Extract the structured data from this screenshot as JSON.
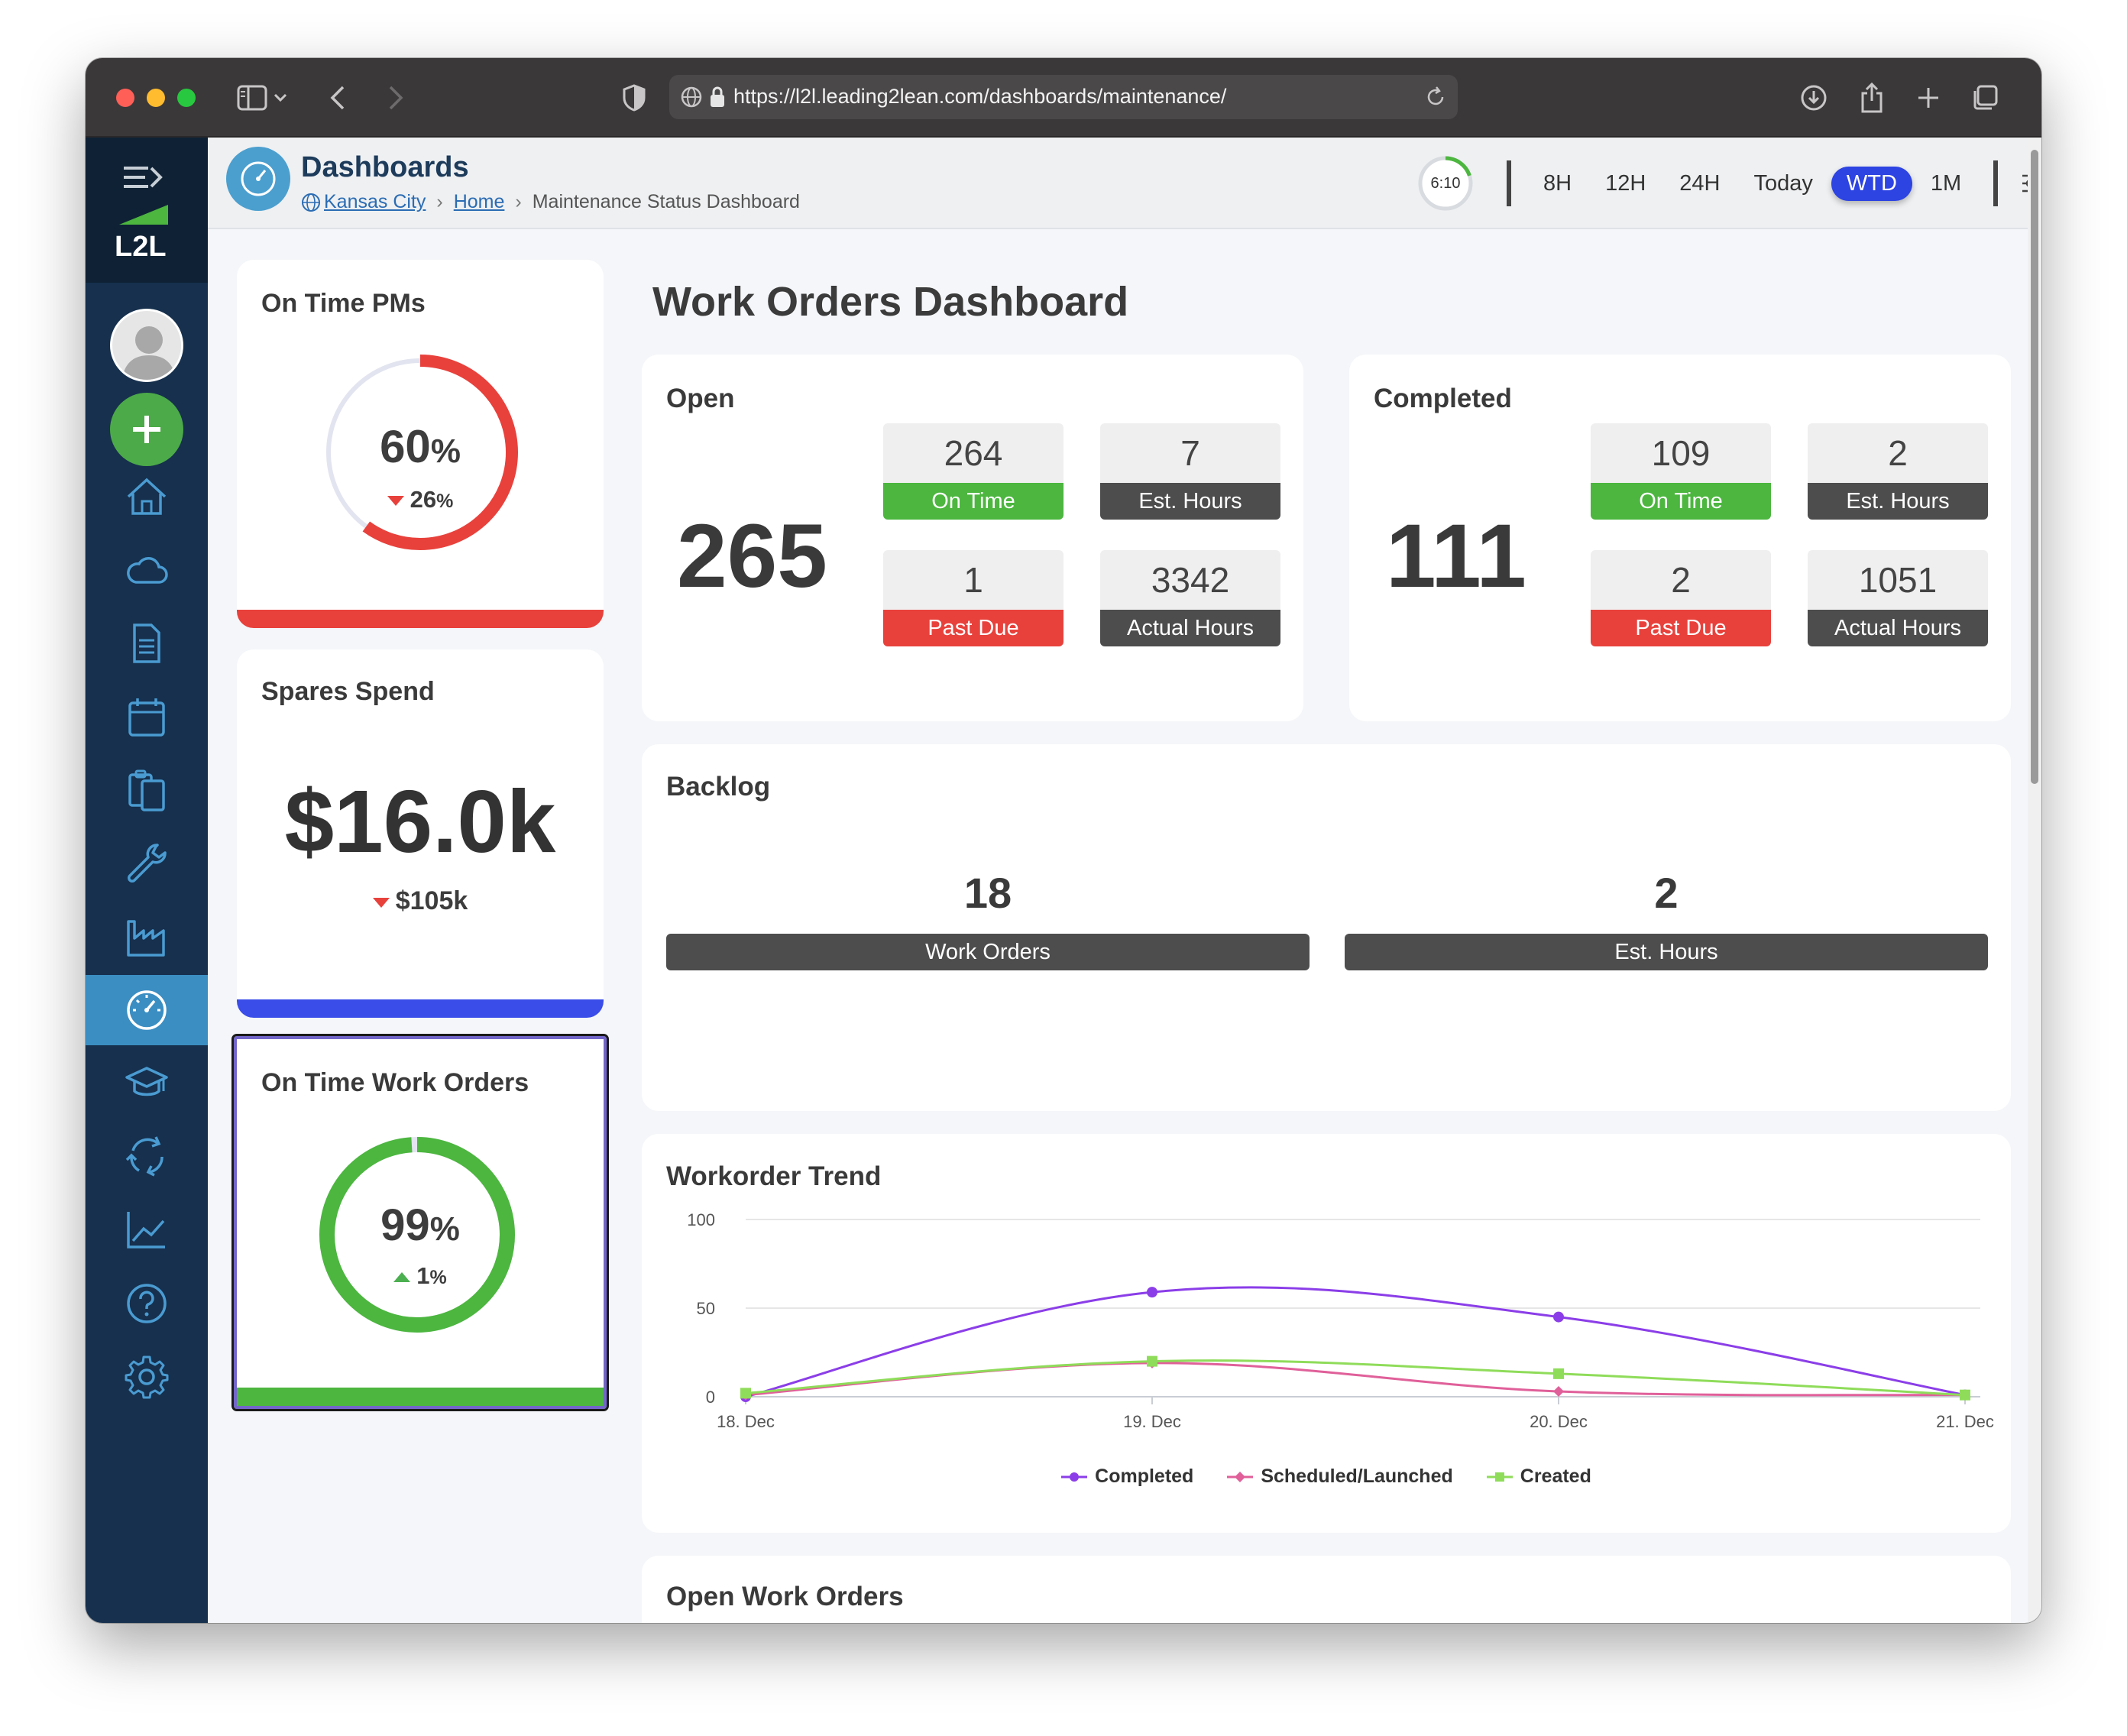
{
  "browser": {
    "url": "https://l2l.leading2lean.com/dashboards/maintenance/"
  },
  "nav": {
    "logo_text": "L2L",
    "items": [
      "home-icon",
      "cloud-icon",
      "document-icon",
      "calendar-icon",
      "clipboard-icon",
      "wrench-icon",
      "factory-icon",
      "dashboard-icon",
      "graduation-cap-icon",
      "cycle-icon",
      "trend-icon",
      "help-icon",
      "gear-icon"
    ],
    "active_item": "dashboard-icon"
  },
  "header": {
    "title": "Dashboards",
    "breadcrumb": {
      "site": "Kansas City",
      "home": "Home",
      "current": "Maintenance Status Dashboard"
    },
    "timer": "6:10",
    "timer_progress": 0.2,
    "ranges": [
      "8H",
      "12H",
      "24H",
      "Today",
      "WTD",
      "1M"
    ],
    "active_range": "WTD"
  },
  "on_time_pms": {
    "title": "On Time PMs",
    "value": "60",
    "unit": "%",
    "delta": "26",
    "delta_unit": "%",
    "delta_direction": "down",
    "progress": 0.6,
    "color": "#e8413c"
  },
  "spares_spend": {
    "title": "Spares Spend",
    "value": "$16.0k",
    "delta": "$105k",
    "delta_direction": "down",
    "color": "#3a4de8"
  },
  "on_time_work_orders": {
    "title": "On Time Work Orders",
    "value": "99",
    "unit": "%",
    "delta": "1",
    "delta_unit": "%",
    "delta_direction": "up",
    "progress": 0.99,
    "color": "#4cb63f"
  },
  "page_title": "Work Orders Dashboard",
  "open": {
    "title": "Open",
    "total": "265",
    "on_time": {
      "value": "264",
      "label": "On Time"
    },
    "est_hours": {
      "value": "7",
      "label": "Est. Hours"
    },
    "past_due": {
      "value": "1",
      "label": "Past Due"
    },
    "actual_hours": {
      "value": "3342",
      "label": "Actual Hours"
    }
  },
  "completed": {
    "title": "Completed",
    "total": "111",
    "on_time": {
      "value": "109",
      "label": "On Time"
    },
    "est_hours": {
      "value": "2",
      "label": "Est. Hours"
    },
    "past_due": {
      "value": "2",
      "label": "Past Due"
    },
    "actual_hours": {
      "value": "1051",
      "label": "Actual Hours"
    }
  },
  "backlog": {
    "title": "Backlog",
    "work_orders": {
      "value": "18",
      "label": "Work Orders"
    },
    "est_hours": {
      "value": "2",
      "label": "Est. Hours"
    }
  },
  "open_work_orders": {
    "title": "Open Work Orders"
  },
  "chart_data": {
    "type": "line",
    "title": "Workorder Trend",
    "categories": [
      "18. Dec",
      "19. Dec",
      "20. Dec",
      "21. Dec"
    ],
    "ylim": [
      0,
      100
    ],
    "yticks": [
      0,
      50,
      100
    ],
    "grid": true,
    "legend": "bottom-center",
    "series": [
      {
        "name": "Completed",
        "values": [
          0,
          59,
          45,
          1
        ],
        "color": "#8b3ee8",
        "marker": "circle"
      },
      {
        "name": "Scheduled/Launched",
        "values": [
          1,
          19,
          3,
          1
        ],
        "color": "#e0609a",
        "marker": "diamond"
      },
      {
        "name": "Created",
        "values": [
          2,
          20,
          13,
          1
        ],
        "color": "#8fdc5a",
        "marker": "square"
      }
    ]
  }
}
